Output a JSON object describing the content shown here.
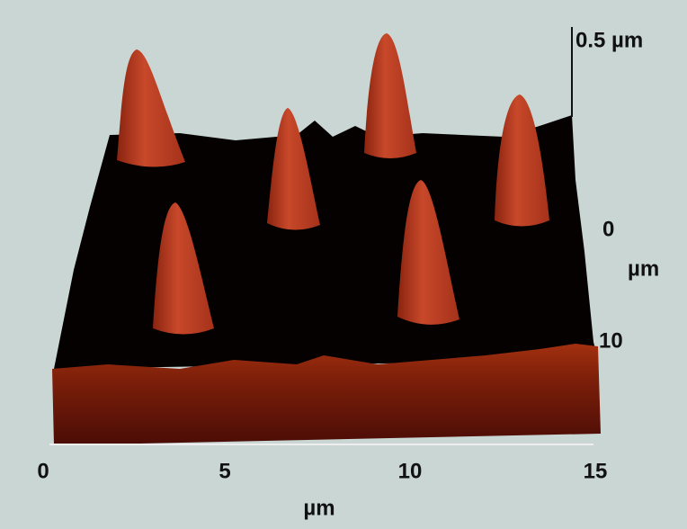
{
  "z_axis": {
    "top_label": "0.5 µm"
  },
  "y_axis": {
    "labels": [
      "0",
      "10"
    ],
    "unit": "µm"
  },
  "x_axis": {
    "labels": [
      "0",
      "5",
      "10",
      "15"
    ],
    "unit": "µm"
  }
}
